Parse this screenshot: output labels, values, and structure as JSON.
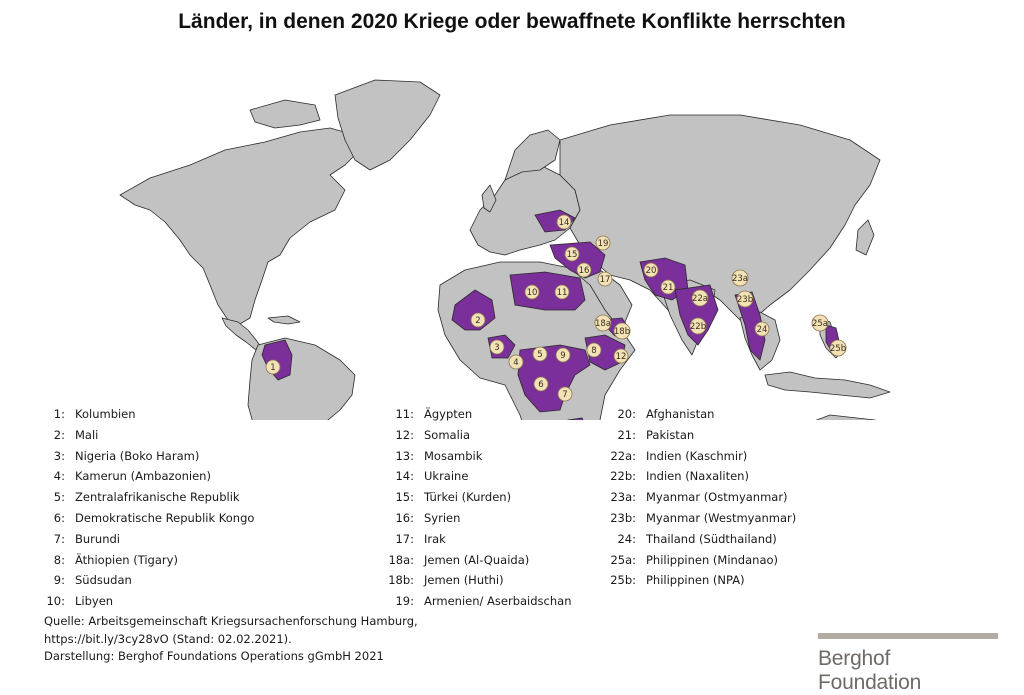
{
  "title": "Länder, in denen 2020 Kriege oder bewaffnete Konflikte herrschten",
  "colors": {
    "land": "#c2c2c2",
    "border": "#2a2a2a",
    "conflict": "#7b2f9b",
    "marker": "#f3e2b6"
  },
  "legend": {
    "col1": [
      {
        "num": "1:",
        "name": "Kolumbien"
      },
      {
        "num": "2:",
        "name": "Mali"
      },
      {
        "num": "3:",
        "name": "Nigeria (Boko Haram)"
      },
      {
        "num": "4:",
        "name": "Kamerun (Ambazonien)"
      },
      {
        "num": "5:",
        "name": "Zentralafrikanische Republik"
      },
      {
        "num": "6:",
        "name": "Demokratische Republik Kongo"
      },
      {
        "num": "7:",
        "name": "Burundi"
      },
      {
        "num": "8:",
        "name": "Äthiopien (Tigary)"
      },
      {
        "num": "9:",
        "name": "Südsudan"
      },
      {
        "num": "10:",
        "name": "Libyen"
      }
    ],
    "col2": [
      {
        "num": "11:",
        "name": "Ägypten"
      },
      {
        "num": "12:",
        "name": "Somalia"
      },
      {
        "num": "13:",
        "name": "Mosambik"
      },
      {
        "num": "14:",
        "name": "Ukraine"
      },
      {
        "num": "15:",
        "name": "Türkei (Kurden)"
      },
      {
        "num": "16:",
        "name": "Syrien"
      },
      {
        "num": "17:",
        "name": "Irak"
      },
      {
        "num": "18a:",
        "name": "Jemen (Al-Quaida)"
      },
      {
        "num": "18b:",
        "name": "Jemen (Huthi)"
      },
      {
        "num": "19:",
        "name": "Armenien/ Aserbaidschan"
      }
    ],
    "col3": [
      {
        "num": "20:",
        "name": "Afghanistan"
      },
      {
        "num": "21:",
        "name": "Pakistan"
      },
      {
        "num": "22a:",
        "name": "Indien (Kaschmir)"
      },
      {
        "num": "22b:",
        "name": "Indien (Naxaliten)"
      },
      {
        "num": "23a:",
        "name": "Myanmar (Ostmyanmar)"
      },
      {
        "num": "23b:",
        "name": "Myanmar (Westmyanmar)"
      },
      {
        "num": "24:",
        "name": "Thailand (Südthailand)"
      },
      {
        "num": "25a:",
        "name": "Philippinen (Mindanao)"
      },
      {
        "num": "25b:",
        "name": "Philippinen  (NPA)"
      }
    ]
  },
  "markers": [
    "1",
    "2",
    "3",
    "4",
    "5",
    "6",
    "7",
    "8",
    "9",
    "10",
    "11",
    "12",
    "13",
    "14",
    "15",
    "16",
    "17",
    "18a",
    "18b",
    "19",
    "20",
    "21",
    "22a",
    "22b",
    "23a",
    "23b",
    "24",
    "25a",
    "25b"
  ],
  "source": {
    "line1": "Quelle: Arbeitsgemeinschaft Kriegsursachenforschung Hamburg,",
    "line2": "https://bit.ly/3cy28vO (Stand: 02.02.2021).",
    "line3": "Darstellung: Berghof Foundations Operations gGmbH 2021"
  },
  "brand": {
    "name": "Berghof Foundation"
  }
}
